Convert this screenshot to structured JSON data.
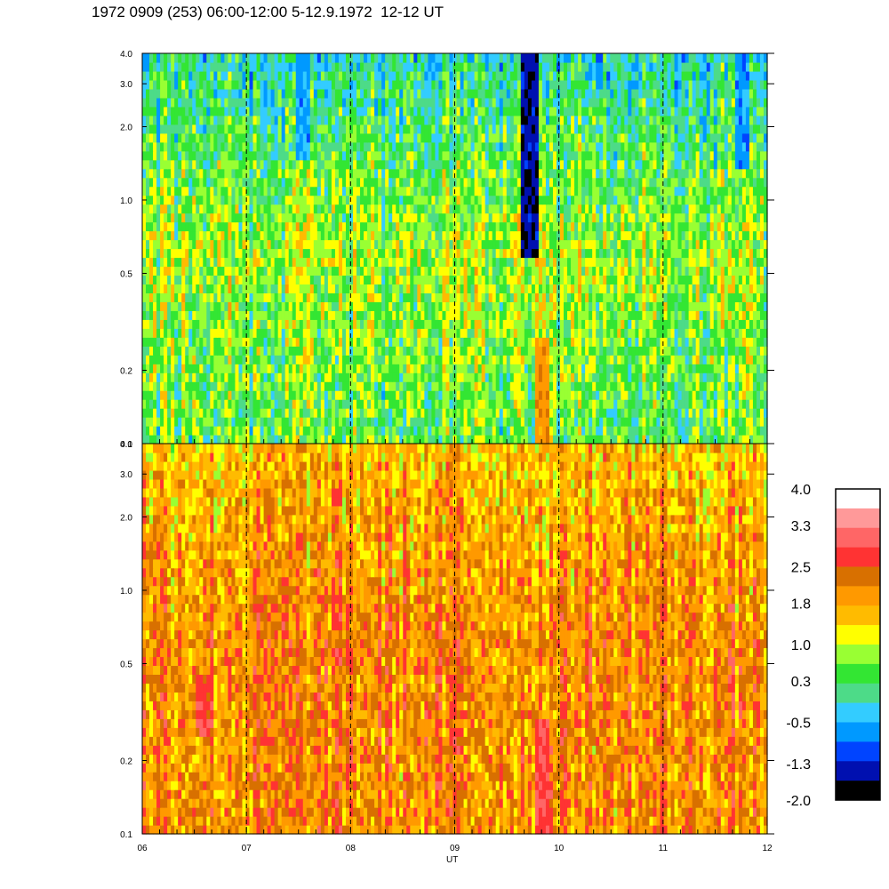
{
  "title": "1972 0909 (253) 06:00-12:00 5-12.9.1972  12-12 UT",
  "chart_data": [
    {
      "type": "heatmap",
      "panel": "upper",
      "x_range": [
        6,
        12
      ],
      "x_ticks": [
        "06",
        "07",
        "08",
        "09",
        "10",
        "11",
        "12"
      ],
      "y_scale": "log",
      "y_range": [
        0.1,
        4.0
      ],
      "y_ticks": [
        "0.1",
        "0.2",
        "0.5",
        "1.0",
        "2.0",
        "3.0",
        "4.0"
      ],
      "dominant_levels": {
        "low_freq": 0.5,
        "mid_freq": 0.9,
        "high_freq": 0.0
      },
      "features": [
        {
          "x": 9.72,
          "y_from": 0.6,
          "y_to": 4.0,
          "level": -1.5
        },
        {
          "x": 7.55,
          "y_from": 1.5,
          "y_to": 4.0,
          "level": -0.6
        },
        {
          "x": 11.75,
          "y_from": 1.3,
          "y_to": 4.0,
          "level": -0.7
        },
        {
          "x": 9.85,
          "y_from": 0.1,
          "y_to": 0.28,
          "level": 2.0
        }
      ]
    },
    {
      "type": "heatmap",
      "panel": "lower",
      "x_range": [
        6,
        12
      ],
      "x_ticks": [
        "06",
        "07",
        "08",
        "09",
        "10",
        "11",
        "12"
      ],
      "xlabel": "UT",
      "y_scale": "log",
      "y_range": [
        0.1,
        4.0
      ],
      "y_ticks": [
        "0.1",
        "0.2",
        "0.5",
        "1.0",
        "2.0",
        "3.0",
        "4.0"
      ],
      "dominant_levels": {
        "low_freq": 2.0,
        "mid_freq": 2.1,
        "high_freq": 1.6
      },
      "features": [
        {
          "x": 9.85,
          "y_from": 0.1,
          "y_to": 0.3,
          "level": 2.8
        },
        {
          "x": 6.6,
          "y_from": 0.25,
          "y_to": 0.45,
          "level": 2.7
        }
      ]
    }
  ],
  "colorbar": {
    "labels": [
      "4.0",
      "3.3",
      "2.5",
      "1.8",
      "1.0",
      "0.3",
      "-0.5",
      "-1.3",
      "-2.0"
    ],
    "colors": [
      "#ffffff",
      "#ff9999",
      "#ff6666",
      "#ff3333",
      "#d87000",
      "#ff9900",
      "#ffbb00",
      "#ffff00",
      "#99ff33",
      "#33e633",
      "#4ddb88",
      "#33ccff",
      "#0099ff",
      "#0044ff",
      "#0010b0",
      "#000000"
    ]
  }
}
